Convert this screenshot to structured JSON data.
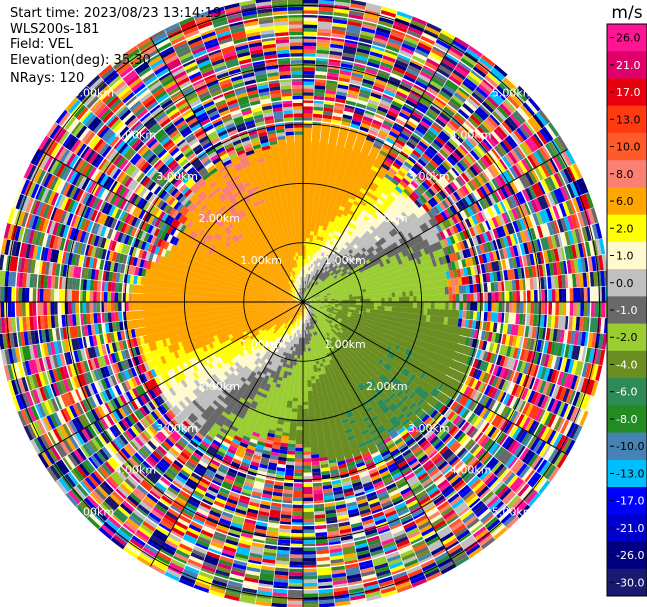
{
  "header": {
    "start_time": "Start time: 2023/08/23 13:14:19",
    "instrument": "WLS200s-181",
    "field": "Field: VEL",
    "elevation": "Elevation(deg): 35.30",
    "nrays": "NRays: 120"
  },
  "chart_data": {
    "type": "heatmap",
    "projection": "polar-ppi",
    "field": "VEL",
    "unit": "m/s",
    "range_rings_km": [
      1.0,
      2.0,
      3.0,
      4.0,
      5.0
    ],
    "ring_labels": [
      "1.00km",
      "2.00km",
      "3.00km",
      "4.00km",
      "5.00km"
    ],
    "max_range_km": 5.15,
    "nrays": 120,
    "colorbar": {
      "label": "m/s",
      "ticks": [
        "26.0",
        "21.0",
        "17.0",
        "13.0",
        "10.0",
        "8.0",
        "6.0",
        "2.0",
        "1.0",
        "0.0",
        "-1.0",
        "-2.0",
        "-4.0",
        "-6.0",
        "-8.0",
        "-10.0",
        "-13.0",
        "-17.0",
        "-21.0",
        "-26.0",
        "-30.0"
      ],
      "colors": [
        "#ff1493",
        "#e0006a",
        "#e8000f",
        "#ff3a10",
        "#ff5a2a",
        "#fa8072",
        "#ffa500",
        "#ffff00",
        "#fffacd",
        "#c0c0c0",
        "#696969",
        "#9acd32",
        "#6b8e23",
        "#2e8b57",
        "#228b22",
        "#4682b4",
        "#00bfff",
        "#0000ff",
        "#0000cd",
        "#000080",
        "#191970"
      ]
    },
    "velocity_pattern": {
      "positive_sector_center_deg": 340,
      "negative_sector_center_deg": 160,
      "max_speed_ms": 6.0,
      "valid_range_km": 2.7
    }
  }
}
